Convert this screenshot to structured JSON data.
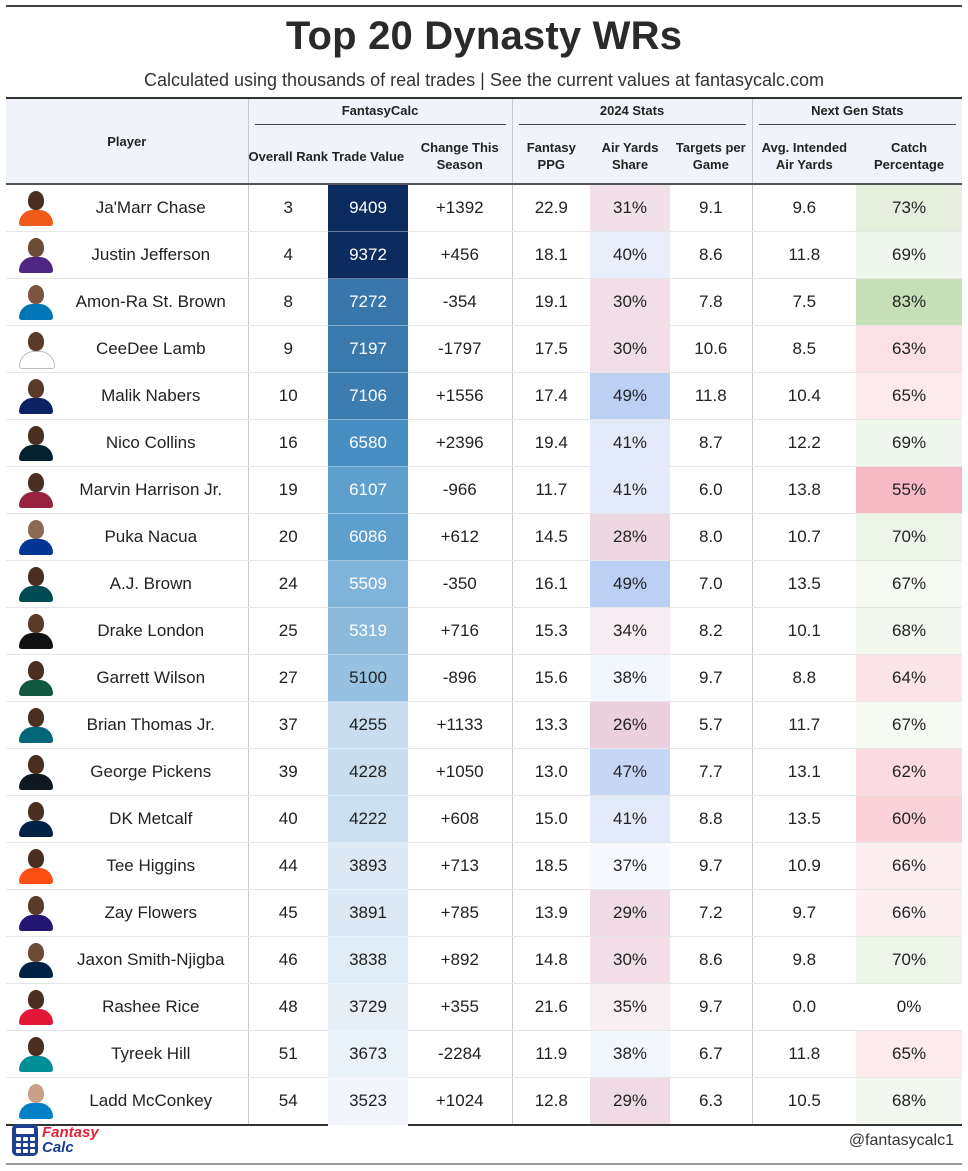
{
  "title": "Top 20 Dynasty WRs",
  "subtitle": "Calculated using thousands of real trades | See the current values at fantasycalc.com",
  "groups": {
    "fantasycalc": "FantasyCalc",
    "stats2024": "2024 Stats",
    "nextgen": "Next Gen Stats"
  },
  "columns": {
    "player": "Player",
    "rank": "Overall Rank",
    "value": "Trade Value",
    "change": "Change This Season",
    "ppg": "Fantasy PPG",
    "airshare": "Air Yards Share",
    "targets": "Targets per Game",
    "aiay": "Avg. Intended Air Yards",
    "catch": "Catch Percentage"
  },
  "rows": [
    {
      "player": "Ja'Marr Chase",
      "rank": "3",
      "value": "9409",
      "change": "+1392",
      "ppg": "22.9",
      "airshare": "31%",
      "targets": "9.1",
      "aiay": "9.6",
      "catch": "73%",
      "jersey": "#f05a1a",
      "skin": "#4a2e20"
    },
    {
      "player": "Justin Jefferson",
      "rank": "4",
      "value": "9372",
      "change": "+456",
      "ppg": "18.1",
      "airshare": "40%",
      "targets": "8.6",
      "aiay": "11.8",
      "catch": "69%",
      "jersey": "#4f2683",
      "skin": "#6b4a36"
    },
    {
      "player": "Amon-Ra St. Brown",
      "rank": "8",
      "value": "7272",
      "change": "-354",
      "ppg": "19.1",
      "airshare": "30%",
      "targets": "7.8",
      "aiay": "7.5",
      "catch": "83%",
      "jersey": "#0076b6",
      "skin": "#7a5540"
    },
    {
      "player": "CeeDee Lamb",
      "rank": "9",
      "value": "7197",
      "change": "-1797",
      "ppg": "17.5",
      "airshare": "30%",
      "targets": "10.6",
      "aiay": "8.5",
      "catch": "63%",
      "jersey": "#ffffff",
      "skin": "#5a3b2a"
    },
    {
      "player": "Malik Nabers",
      "rank": "10",
      "value": "7106",
      "change": "+1556",
      "ppg": "17.4",
      "airshare": "49%",
      "targets": "11.8",
      "aiay": "10.4",
      "catch": "65%",
      "jersey": "#0b2265",
      "skin": "#5a3b2a"
    },
    {
      "player": "Nico Collins",
      "rank": "16",
      "value": "6580",
      "change": "+2396",
      "ppg": "19.4",
      "airshare": "41%",
      "targets": "8.7",
      "aiay": "12.2",
      "catch": "69%",
      "jersey": "#03202f",
      "skin": "#4a2e20"
    },
    {
      "player": "Marvin Harrison Jr.",
      "rank": "19",
      "value": "6107",
      "change": "-966",
      "ppg": "11.7",
      "airshare": "41%",
      "targets": "6.0",
      "aiay": "13.8",
      "catch": "55%",
      "jersey": "#97233f",
      "skin": "#4a2e20"
    },
    {
      "player": "Puka Nacua",
      "rank": "20",
      "value": "6086",
      "change": "+612",
      "ppg": "14.5",
      "airshare": "28%",
      "targets": "8.0",
      "aiay": "10.7",
      "catch": "70%",
      "jersey": "#003594",
      "skin": "#8a6a55"
    },
    {
      "player": "A.J. Brown",
      "rank": "24",
      "value": "5509",
      "change": "-350",
      "ppg": "16.1",
      "airshare": "49%",
      "targets": "7.0",
      "aiay": "13.5",
      "catch": "67%",
      "jersey": "#004c54",
      "skin": "#4a2e20"
    },
    {
      "player": "Drake London",
      "rank": "25",
      "value": "5319",
      "change": "+716",
      "ppg": "15.3",
      "airshare": "34%",
      "targets": "8.2",
      "aiay": "10.1",
      "catch": "68%",
      "jersey": "#111111",
      "skin": "#5a3b2a"
    },
    {
      "player": "Garrett Wilson",
      "rank": "27",
      "value": "5100",
      "change": "-896",
      "ppg": "15.6",
      "airshare": "38%",
      "targets": "9.7",
      "aiay": "8.8",
      "catch": "64%",
      "jersey": "#125740",
      "skin": "#4a2e20"
    },
    {
      "player": "Brian Thomas Jr.",
      "rank": "37",
      "value": "4255",
      "change": "+1133",
      "ppg": "13.3",
      "airshare": "26%",
      "targets": "5.7",
      "aiay": "11.7",
      "catch": "67%",
      "jersey": "#006778",
      "skin": "#4a2e20"
    },
    {
      "player": "George Pickens",
      "rank": "39",
      "value": "4228",
      "change": "+1050",
      "ppg": "13.0",
      "airshare": "47%",
      "targets": "7.7",
      "aiay": "13.1",
      "catch": "62%",
      "jersey": "#101820",
      "skin": "#4a2e20"
    },
    {
      "player": "DK Metcalf",
      "rank": "40",
      "value": "4222",
      "change": "+608",
      "ppg": "15.0",
      "airshare": "41%",
      "targets": "8.8",
      "aiay": "13.5",
      "catch": "60%",
      "jersey": "#002244",
      "skin": "#4a2e20"
    },
    {
      "player": "Tee Higgins",
      "rank": "44",
      "value": "3893",
      "change": "+713",
      "ppg": "18.5",
      "airshare": "37%",
      "targets": "9.7",
      "aiay": "10.9",
      "catch": "66%",
      "jersey": "#fb4f14",
      "skin": "#4a2e20"
    },
    {
      "player": "Zay Flowers",
      "rank": "45",
      "value": "3891",
      "change": "+785",
      "ppg": "13.9",
      "airshare": "29%",
      "targets": "7.2",
      "aiay": "9.7",
      "catch": "66%",
      "jersey": "#241773",
      "skin": "#5a3b2a"
    },
    {
      "player": "Jaxon Smith-Njigba",
      "rank": "46",
      "value": "3838",
      "change": "+892",
      "ppg": "14.8",
      "airshare": "30%",
      "targets": "8.6",
      "aiay": "9.8",
      "catch": "70%",
      "jersey": "#002244",
      "skin": "#6b4a36"
    },
    {
      "player": "Rashee Rice",
      "rank": "48",
      "value": "3729",
      "change": "+355",
      "ppg": "21.6",
      "airshare": "35%",
      "targets": "9.7",
      "aiay": "0.0",
      "catch": "0%",
      "jersey": "#e31837",
      "skin": "#4a2e20"
    },
    {
      "player": "Tyreek Hill",
      "rank": "51",
      "value": "3673",
      "change": "-2284",
      "ppg": "11.9",
      "airshare": "38%",
      "targets": "6.7",
      "aiay": "11.8",
      "catch": "65%",
      "jersey": "#008e97",
      "skin": "#4a2e20"
    },
    {
      "player": "Ladd McConkey",
      "rank": "54",
      "value": "3523",
      "change": "+1024",
      "ppg": "12.8",
      "airshare": "29%",
      "targets": "6.3",
      "aiay": "10.5",
      "catch": "68%",
      "jersey": "#0080c6",
      "skin": "#c9a08a"
    }
  ],
  "footer": {
    "logo_line1": "Fantasy",
    "logo_line2": "Calc",
    "handle": "@fantasycalc1"
  },
  "colors": {
    "value_dark": "#0b2a5e",
    "value_light": "#f3f7fc",
    "good": "#c6dfb7",
    "bad": "#f7b9c4",
    "air_high": "#bcd0f3",
    "air_low": "#ecd0dd"
  }
}
